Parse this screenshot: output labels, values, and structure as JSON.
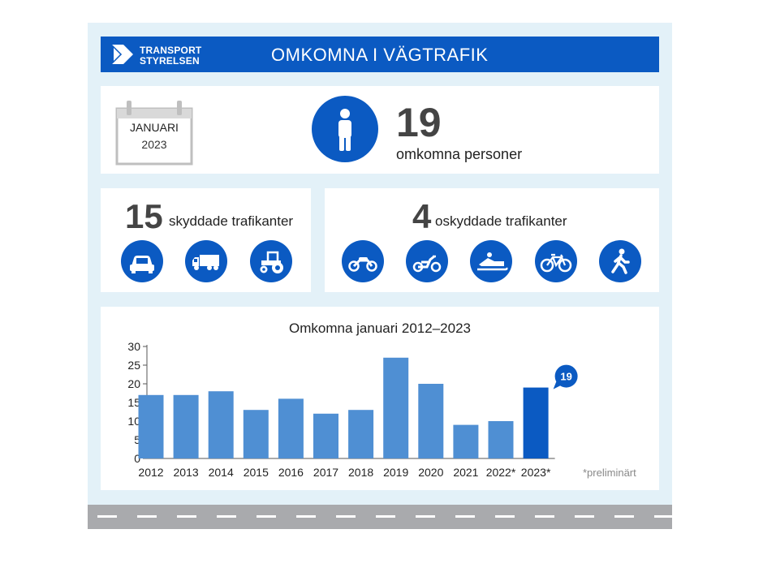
{
  "header": {
    "logo_line1": "TRANSPORT",
    "logo_line2": "STYRELSEN",
    "title": "OMKOMNA I VÄGTRAFIK",
    "brand_color": "#0b5ac2"
  },
  "summary": {
    "month": "JANUARI",
    "year": "2023",
    "count": "19",
    "count_label": "omkomna personer",
    "person_icon": "person-icon"
  },
  "protected": {
    "count": "15",
    "label": "skyddade trafikanter",
    "icons": [
      "car-icon",
      "truck-icon",
      "tractor-icon"
    ]
  },
  "unprotected": {
    "count": "4",
    "label": "oskyddade trafikanter",
    "icons": [
      "motorcycle-icon",
      "moped-icon",
      "snowmobile-icon",
      "bicycle-icon",
      "pedestrian-icon"
    ]
  },
  "footnote": "*preliminärt",
  "chart_data": {
    "type": "bar",
    "title": "Omkomna januari 2012–2023",
    "categories": [
      "2012",
      "2013",
      "2014",
      "2015",
      "2016",
      "2017",
      "2018",
      "2019",
      "2020",
      "2021",
      "2022*",
      "2023*"
    ],
    "values": [
      17,
      17,
      18,
      13,
      16,
      12,
      13,
      27,
      20,
      9,
      10,
      19
    ],
    "ylim": [
      0,
      30
    ],
    "yticks": [
      0,
      5,
      10,
      15,
      20,
      25,
      30
    ],
    "grid": false,
    "bar_color": "#4f8fd3",
    "highlight_color": "#0b5ac2",
    "highlight_index": 11,
    "callout": "19"
  }
}
